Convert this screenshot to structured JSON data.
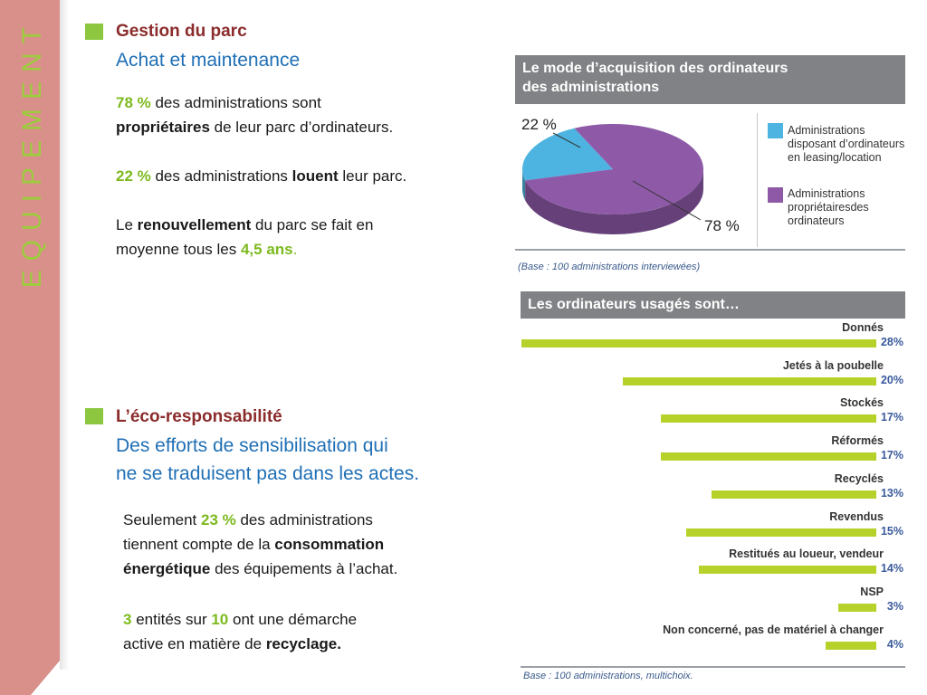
{
  "sidebar": {
    "title": "EQUIPEMENT"
  },
  "section1": {
    "heading": "Gestion du parc",
    "subheading": "Achat et maintenance",
    "p1": {
      "pct": "78 %",
      "t1": " des administrations sont",
      "bold": "propriétaires",
      "t2": " de leur parc d’ordinateurs."
    },
    "p2": {
      "pct": "22 %",
      "t1": " des administrations ",
      "bold": "louent",
      "t2": " leur parc."
    },
    "p3": {
      "t1": "Le ",
      "bold": "renouvellement",
      "t2": " du parc se fait en",
      "t3": "moyenne tous les ",
      "num": "4,5 ans",
      "dot": "."
    }
  },
  "section2": {
    "heading": "L’éco-responsabilité",
    "sub1": "Des efforts de sensibilisation qui",
    "sub2": "ne se traduisent pas dans les actes.",
    "p1": {
      "t1": "Seulement ",
      "pct": "23 %",
      "t2": " des administrations",
      "t3": "tiennent compte de la ",
      "b1": "consommation",
      "b2": "énergétique",
      "t4": " des équipements à l’achat."
    },
    "p2": {
      "n1": "3",
      "t1": " entités sur ",
      "n2": "10",
      "t2": " ont une démarche",
      "t3": "active en matière de ",
      "bold": "recyclage."
    }
  },
  "pie_panel": {
    "title_line1": "Le mode d’acquisition des ordinateurs",
    "title_line2": "des administrations",
    "base": "(Base : 100 administrations interviewées)"
  },
  "bar_panel": {
    "title": "Les ordinateurs usagés sont…",
    "base": "Base : 100 administrations, multichoix."
  },
  "chart_data": [
    {
      "type": "pie",
      "title": "Le mode d’acquisition des ordinateurs des administrations",
      "slices": [
        {
          "label": "Administrations disposant d’ordinateurs en leasing/location",
          "value": 22,
          "value_label": "22 %",
          "color": "#4db3e0",
          "legend_lines": [
            "Administrations",
            "disposant d’ordinateurs",
            "en leasing/location"
          ]
        },
        {
          "label": "Administrations propriétairesdes ordinateurs",
          "value": 78,
          "value_label": "78 %",
          "color": "#8e5aa8",
          "legend_lines": [
            "Administrations",
            "propriétairesdes",
            "ordinateurs"
          ]
        }
      ],
      "legend_position": "right"
    },
    {
      "type": "bar",
      "orientation": "horizontal",
      "title": "Les ordinateurs usagés sont…",
      "categories": [
        "Donnés",
        "Jetés à la poubelle",
        "Stockés",
        "Réformés",
        "Recyclés",
        "Revendus",
        "Restitués au loueur, vendeur",
        "NSP",
        "Non concerné, pas de matériel à changer"
      ],
      "values": [
        28,
        20,
        17,
        17,
        13,
        15,
        14,
        3,
        4
      ],
      "value_labels": [
        "28%",
        "20%",
        "17%",
        "17%",
        "13%",
        "15%",
        "14%",
        "3%",
        "4%"
      ],
      "bar_color": "#b6d22a",
      "xlim": [
        0,
        28
      ]
    }
  ]
}
